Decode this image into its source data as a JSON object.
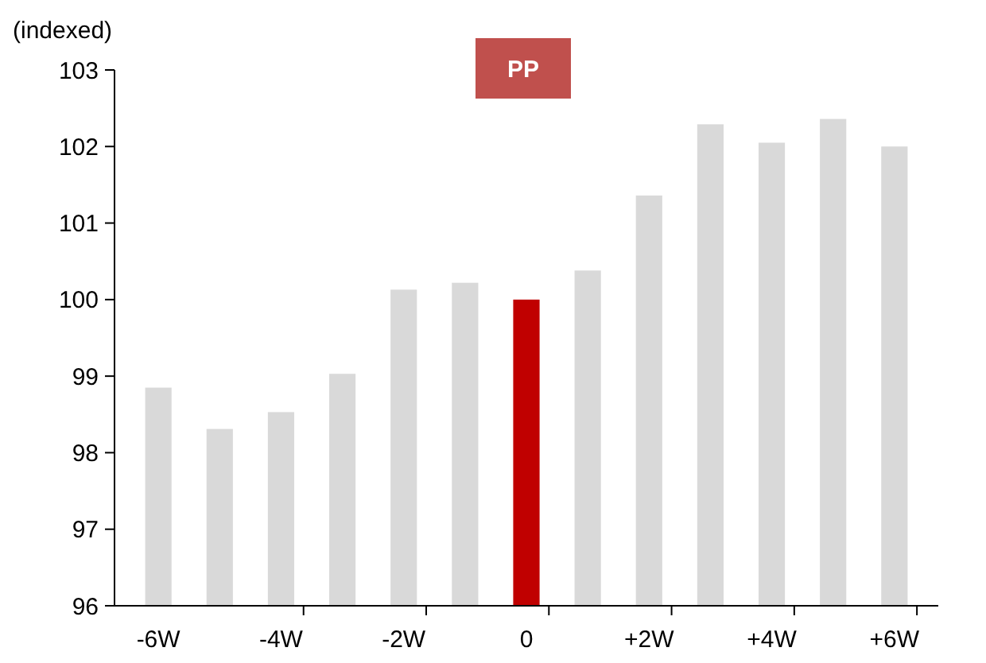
{
  "chart_data": {
    "type": "bar",
    "ylabel": "(indexed)",
    "annotations": [
      "PP"
    ],
    "categories": [
      "-6W",
      null,
      "-4W",
      null,
      "-2W",
      null,
      "0",
      null,
      "+2W",
      null,
      "+4W",
      null,
      "+6W"
    ],
    "values": [
      98.85,
      98.31,
      98.53,
      99.03,
      100.13,
      100.22,
      100,
      100.38,
      101.36,
      102.29,
      102.05,
      102.36,
      102.0
    ],
    "colors": [
      "#d9d9d9",
      "#d9d9d9",
      "#d9d9d9",
      "#d9d9d9",
      "#d9d9d9",
      "#d9d9d9",
      "#c00000",
      "#d9d9d9",
      "#d9d9d9",
      "#d9d9d9",
      "#d9d9d9",
      "#d9d9d9",
      "#d9d9d9"
    ],
    "ylim": [
      96,
      103
    ],
    "yticks": [
      96,
      97,
      98,
      99,
      100,
      101,
      102,
      103
    ],
    "grid": false
  }
}
